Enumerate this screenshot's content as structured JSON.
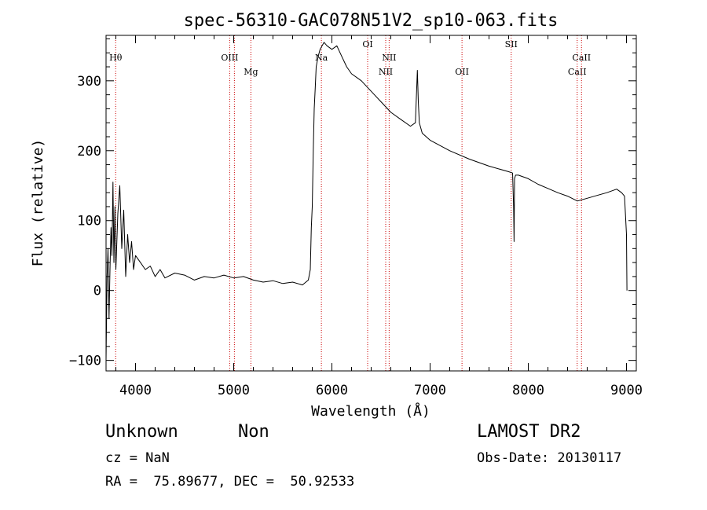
{
  "chart_data": {
    "type": "line",
    "title": "spec-56310-GAC078N51V2_sp10-063.fits",
    "xlabel": "Wavelength (Å)",
    "ylabel": "Flux (relative)",
    "xlim": [
      3700,
      9100
    ],
    "ylim": [
      -115,
      365
    ],
    "xticks": [
      4000,
      5000,
      6000,
      7000,
      8000,
      9000
    ],
    "yticks": [
      -100,
      0,
      100,
      200,
      300
    ],
    "xtick_labels": [
      "4000",
      "5000",
      "6000",
      "7000",
      "8000",
      "9000"
    ],
    "ytick_labels": [
      "−100",
      "0",
      "100",
      "200",
      "300"
    ],
    "grid": false,
    "series": [
      {
        "color": "#000000",
        "x": [
          3700,
          3710,
          3720,
          3730,
          3740,
          3750,
          3760,
          3770,
          3780,
          3790,
          3800,
          3820,
          3840,
          3860,
          3880,
          3900,
          3920,
          3940,
          3960,
          3980,
          4000,
          4050,
          4100,
          4150,
          4200,
          4250,
          4300,
          4400,
          4500,
          4600,
          4700,
          4800,
          4900,
          5000,
          5100,
          5200,
          5300,
          5400,
          5500,
          5600,
          5700,
          5760,
          5780,
          5790,
          5800,
          5810,
          5820,
          5830,
          5840,
          5860,
          5880,
          5900,
          5920,
          5950,
          6000,
          6050,
          6100,
          6150,
          6200,
          6300,
          6400,
          6500,
          6600,
          6700,
          6800,
          6850,
          6870,
          6880,
          6890,
          6920,
          7000,
          7200,
          7400,
          7600,
          7800,
          7840,
          7850,
          7855,
          7860,
          7870,
          7900,
          8000,
          8100,
          8200,
          8300,
          8400,
          8500,
          8600,
          8700,
          8800,
          8900,
          8950,
          8980,
          9000,
          9005
        ],
        "y": [
          -100,
          20,
          60,
          -40,
          30,
          90,
          50,
          155,
          40,
          120,
          30,
          110,
          150,
          60,
          115,
          20,
          80,
          40,
          70,
          30,
          50,
          40,
          30,
          35,
          20,
          30,
          18,
          25,
          22,
          15,
          20,
          18,
          22,
          18,
          20,
          15,
          12,
          14,
          10,
          12,
          8,
          15,
          30,
          90,
          120,
          200,
          260,
          290,
          320,
          335,
          345,
          350,
          355,
          350,
          345,
          350,
          335,
          320,
          310,
          300,
          285,
          270,
          255,
          245,
          235,
          240,
          315,
          270,
          240,
          225,
          215,
          200,
          188,
          178,
          170,
          168,
          120,
          70,
          160,
          165,
          165,
          160,
          152,
          146,
          140,
          135,
          128,
          132,
          136,
          140,
          145,
          140,
          135,
          80,
          0
        ]
      }
    ],
    "lines": [
      {
        "name": "Hθ",
        "x": 3798,
        "label_row": "top"
      },
      {
        "name": "OIII",
        "x": 4959,
        "label_row": "top"
      },
      {
        "name": "OIII",
        "x": 5007,
        "label_row": "hidden"
      },
      {
        "name": "Mg",
        "x": 5175,
        "label_row": "mid"
      },
      {
        "name": "Na",
        "x": 5893,
        "label_row": "top"
      },
      {
        "name": "OI",
        "x": 6364,
        "label_row": "upper"
      },
      {
        "name": "NII",
        "x": 6548,
        "label_row": "mid"
      },
      {
        "name": "NII",
        "x": 6583,
        "label_row": "top"
      },
      {
        "name": "OII",
        "x": 7325,
        "label_row": "mid"
      },
      {
        "name": "SII",
        "x": 7826,
        "label_row": "upper"
      },
      {
        "name": "CaII",
        "x": 8498,
        "label_row": "mid"
      },
      {
        "name": "CaII",
        "x": 8542,
        "label_row": "top"
      }
    ],
    "line_color": "#cc0000"
  },
  "footer": {
    "object_class": "Unknown",
    "object_subclass": "Non",
    "survey": "LAMOST DR2",
    "cz": "cz = NaN",
    "obs_date": "Obs-Date: 20130117",
    "coords": "RA =  75.89677, DEC =  50.92533"
  }
}
